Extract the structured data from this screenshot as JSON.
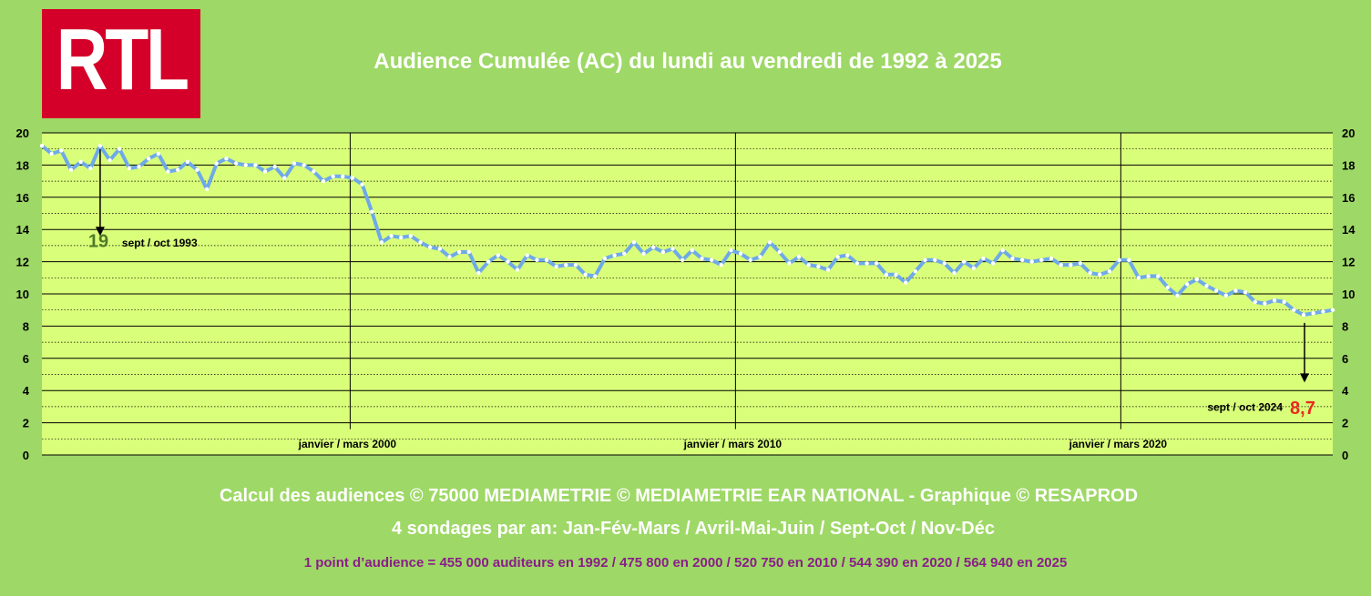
{
  "logo": {
    "text": "RTL",
    "color": "#d4002a"
  },
  "chart_data": {
    "type": "line",
    "title": "Audience Cumulée (AC) du lundi au vendredi de 1992 à 2025",
    "ylim": [
      0,
      20
    ],
    "yticks": [
      0,
      2,
      4,
      6,
      8,
      10,
      12,
      14,
      16,
      18,
      20
    ],
    "xrange": [
      1992.0,
      2025.5
    ],
    "xlabels": [
      {
        "x": 2000.0,
        "label": "janvier / mars 2000"
      },
      {
        "x": 2010.0,
        "label": "janvier / mars 2010"
      },
      {
        "x": 2020.0,
        "label": "janvier / mars 2020"
      }
    ],
    "plot_bg": "#d9ff7a",
    "line_color": "#6fa9e8",
    "grid": true,
    "series": [
      {
        "values": [
          19.2,
          18.7,
          18.9,
          17.7,
          18.2,
          17.8,
          19.2,
          18.3,
          19.0,
          17.8,
          17.9,
          18.4,
          18.7,
          17.6,
          17.7,
          18.2,
          17.7,
          16.5,
          18.1,
          18.4,
          18.1,
          18.0,
          18.0,
          17.6,
          17.9,
          17.2,
          18.1,
          18.0,
          17.6,
          17.0,
          17.3,
          17.3,
          17.2,
          16.8,
          15.1,
          13.2,
          13.6,
          13.5,
          13.6,
          13.2,
          12.9,
          12.8,
          12.3,
          12.6,
          12.6,
          11.3,
          12.0,
          12.4,
          12.0,
          11.5,
          12.4,
          12.1,
          12.1,
          11.7,
          11.8,
          11.8,
          11.2,
          11.1,
          12.2,
          12.4,
          12.5,
          13.2,
          12.5,
          12.9,
          12.6,
          12.8,
          12.1,
          12.7,
          12.2,
          12.1,
          11.8,
          12.7,
          12.5,
          12.1,
          12.3,
          13.2,
          12.6,
          11.9,
          12.3,
          11.8,
          11.7,
          11.5,
          12.3,
          12.4,
          11.9,
          11.9,
          11.9,
          11.2,
          11.2,
          10.7,
          11.4,
          12.1,
          12.1,
          11.9,
          11.3,
          12.0,
          11.6,
          12.2,
          11.9,
          12.7,
          12.2,
          12.1,
          12.0,
          12.1,
          12.2,
          11.8,
          11.8,
          11.9,
          11.3,
          11.2,
          11.4,
          12.1,
          12.1,
          11.0,
          11.1,
          11.1,
          10.4,
          9.9,
          10.6,
          10.9,
          10.5,
          10.2,
          9.9,
          10.2,
          10.1,
          9.5,
          9.4,
          9.6,
          9.5,
          9.0,
          8.7,
          8.8,
          8.9,
          9.0
        ]
      }
    ],
    "annotations": [
      {
        "value": "19",
        "label": "sept / oct 1993",
        "value_color": "#4f7a28"
      },
      {
        "value": "8,7",
        "label": "sept / oct 2024",
        "value_color": "#e8291c"
      }
    ]
  },
  "footer": {
    "line1": "Calcul des audiences © 75000 MEDIAMETRIE © MEDIAMETRIE EAR NATIONAL - Graphique © RESAPROD",
    "line2": "4 sondages par an: Jan-Fév-Mars / Avril-Mai-Juin / Sept-Oct / Nov-Déc",
    "line3": "1 point d’audience = 455 000 auditeurs en 1992   /   475 800 en 2000   /   520 750 en 2010   /   544 390 en 2020   /   564 940 en 2025"
  }
}
